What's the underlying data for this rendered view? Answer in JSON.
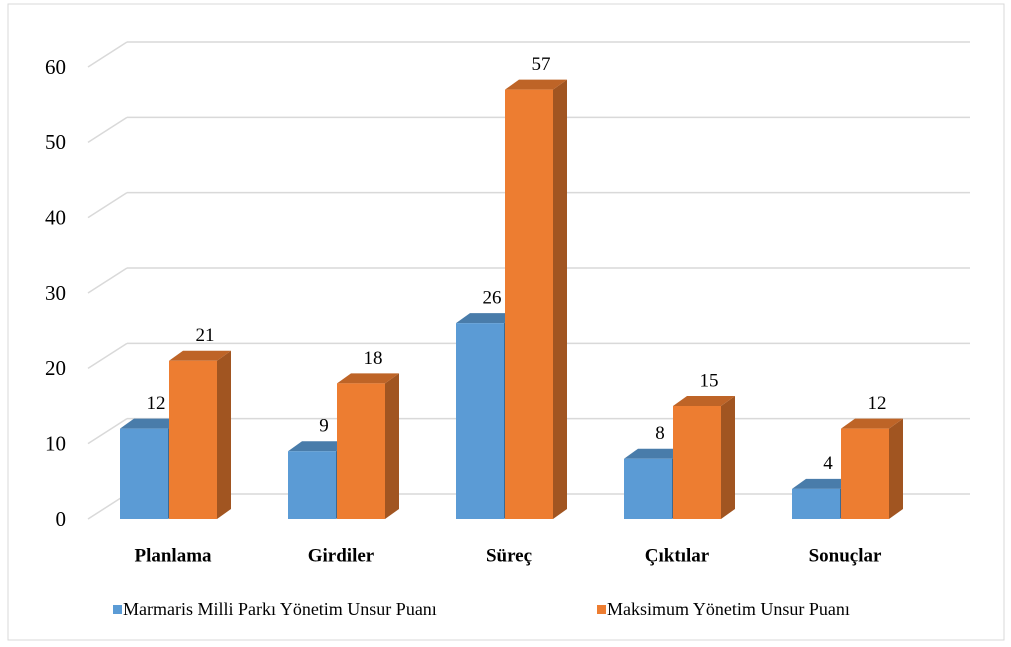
{
  "chart_data": {
    "type": "bar3d",
    "categories": [
      "Planlama",
      "Girdiler",
      "Süreç",
      "Çıktılar",
      "Sonuçlar"
    ],
    "series": [
      {
        "name": "Marmaris Milli Parkı  Yönetim Unsur Puanı",
        "color": "#5b9bd5",
        "values": [
          12,
          9,
          26,
          8,
          4
        ]
      },
      {
        "name": "Maksimum Yönetim Unsur Puanı",
        "color": "#ed7d31",
        "values": [
          21,
          18,
          57,
          15,
          12
        ]
      }
    ],
    "ylim": [
      0,
      60
    ],
    "yticks": [
      0,
      10,
      20,
      30,
      40,
      50,
      60
    ],
    "grid": true
  }
}
